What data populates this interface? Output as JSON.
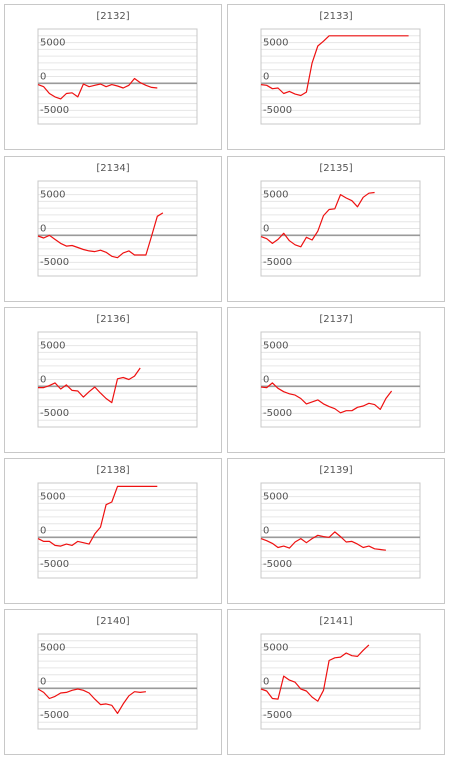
{
  "colors": {
    "line": "#ee1111",
    "zero": "#9a9a9a",
    "grid": "#e6e6e6",
    "frame": "#c8c8c8",
    "text": "#555555"
  },
  "chart_data": [
    {
      "type": "line",
      "title": "[2132]",
      "ylim": [
        -6000,
        8000
      ],
      "yticks": [
        5000,
        0,
        -5000
      ],
      "ytick_labels": [
        "5000",
        "0",
        "-5000"
      ],
      "values": [
        -200,
        -500,
        -1500,
        -2000,
        -2300,
        -1500,
        -1400,
        -2000,
        -100,
        -500,
        -300,
        -100,
        -500,
        -200,
        -400,
        -700,
        -300,
        700,
        100,
        -300,
        -600,
        -700
      ]
    },
    {
      "type": "line",
      "title": "[2133]",
      "ylim": [
        -6000,
        8000
      ],
      "yticks": [
        5000,
        0,
        -5000
      ],
      "ytick_labels": [
        "5000",
        "0",
        "-5000"
      ],
      "values": [
        -200,
        -300,
        -800,
        -700,
        -1500,
        -1200,
        -1600,
        -1800,
        -1300,
        3000,
        5500,
        6200,
        7000,
        7000,
        7000,
        7000,
        7000,
        7000,
        7000,
        7000,
        7000,
        7000,
        7000,
        7000,
        7000,
        7000,
        7000
      ]
    },
    {
      "type": "line",
      "title": "[2134]",
      "ylim": [
        -6000,
        8000
      ],
      "yticks": [
        5000,
        0,
        -5000
      ],
      "ytick_labels": [
        "5000",
        "0",
        "-5000"
      ],
      "values": [
        -100,
        -400,
        0,
        -600,
        -1200,
        -1600,
        -1500,
        -1800,
        -2100,
        -2300,
        -2400,
        -2200,
        -2500,
        -3100,
        -3300,
        -2600,
        -2300,
        -2900,
        -2900,
        -2900,
        -100,
        2800,
        3300
      ]
    },
    {
      "type": "line",
      "title": "[2135]",
      "ylim": [
        -6000,
        8000
      ],
      "yticks": [
        5000,
        0,
        -5000
      ],
      "ytick_labels": [
        "5000",
        "0",
        "-5000"
      ],
      "values": [
        -200,
        -500,
        -1200,
        -600,
        300,
        -800,
        -1400,
        -1700,
        -300,
        -700,
        600,
        2900,
        3800,
        3900,
        6000,
        5500,
        5100,
        4200,
        5600,
        6200,
        6300
      ]
    },
    {
      "type": "line",
      "title": "[2136]",
      "ylim": [
        -6000,
        8000
      ],
      "yticks": [
        5000,
        0,
        -5000
      ],
      "ytick_labels": [
        "5000",
        "0",
        "-5000"
      ],
      "values": [
        -200,
        -200,
        100,
        500,
        -400,
        200,
        -600,
        -700,
        -1600,
        -800,
        -100,
        -1000,
        -1800,
        -2400,
        1100,
        1300,
        1000,
        1500,
        2700
      ]
    },
    {
      "type": "line",
      "title": "[2137]",
      "ylim": [
        -6000,
        8000
      ],
      "yticks": [
        5000,
        0,
        -5000
      ],
      "ytick_labels": [
        "5000",
        "0",
        "-5000"
      ],
      "values": [
        -100,
        -200,
        500,
        -300,
        -800,
        -1100,
        -1300,
        -1800,
        -2600,
        -2300,
        -2000,
        -2600,
        -3000,
        -3300,
        -3900,
        -3600,
        -3600,
        -3100,
        -2900,
        -2500,
        -2700,
        -3400,
        -1800,
        -700
      ]
    },
    {
      "type": "line",
      "title": "[2138]",
      "ylim": [
        -6000,
        8000
      ],
      "yticks": [
        5000,
        0,
        -5000
      ],
      "ytick_labels": [
        "5000",
        "0",
        "-5000"
      ],
      "values": [
        -200,
        -600,
        -600,
        -1200,
        -1300,
        -1000,
        -1200,
        -600,
        -800,
        -1000,
        500,
        1500,
        4800,
        5200,
        7500,
        7500,
        7500,
        7500,
        7500,
        7500,
        7500,
        7500
      ]
    },
    {
      "type": "line",
      "title": "[2139]",
      "ylim": [
        -6000,
        8000
      ],
      "yticks": [
        5000,
        0,
        -5000
      ],
      "ytick_labels": [
        "5000",
        "0",
        "-5000"
      ],
      "values": [
        -200,
        -500,
        -900,
        -1500,
        -1300,
        -1600,
        -700,
        -200,
        -800,
        -200,
        300,
        100,
        0,
        800,
        100,
        -700,
        -600,
        -1000,
        -1500,
        -1300,
        -1700,
        -1800,
        -1900
      ]
    },
    {
      "type": "line",
      "title": "[2140]",
      "ylim": [
        -6000,
        8000
      ],
      "yticks": [
        5000,
        0,
        -5000
      ],
      "ytick_labels": [
        "5000",
        "0",
        "-5000"
      ],
      "values": [
        -100,
        -600,
        -1500,
        -1200,
        -700,
        -600,
        -300,
        -100,
        -300,
        -700,
        -1600,
        -2400,
        -2300,
        -2500,
        -3700,
        -2300,
        -1100,
        -500,
        -600,
        -500
      ]
    },
    {
      "type": "line",
      "title": "[2141]",
      "ylim": [
        -6000,
        8000
      ],
      "yticks": [
        5000,
        0,
        -5000
      ],
      "ytick_labels": [
        "5000",
        "0",
        "-5000"
      ],
      "values": [
        -100,
        -400,
        -1500,
        -1600,
        1800,
        1200,
        900,
        -100,
        -400,
        -1300,
        -1900,
        -300,
        4100,
        4500,
        4600,
        5200,
        4800,
        4700,
        5600,
        6400
      ]
    }
  ]
}
